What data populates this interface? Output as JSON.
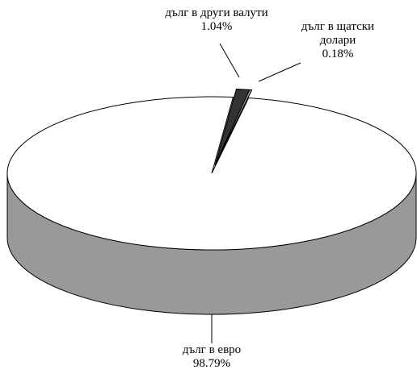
{
  "chart_data": {
    "type": "pie",
    "categories": [
      "дълг в евро",
      "дълг в други валути",
      "дълг в щатски долари"
    ],
    "values": [
      98.79,
      1.04,
      0.18
    ],
    "value_labels": [
      "98.79%",
      "1.04%",
      "0.18%"
    ],
    "colors": [
      "#ffffff",
      "#333333",
      "#999999"
    ]
  }
}
